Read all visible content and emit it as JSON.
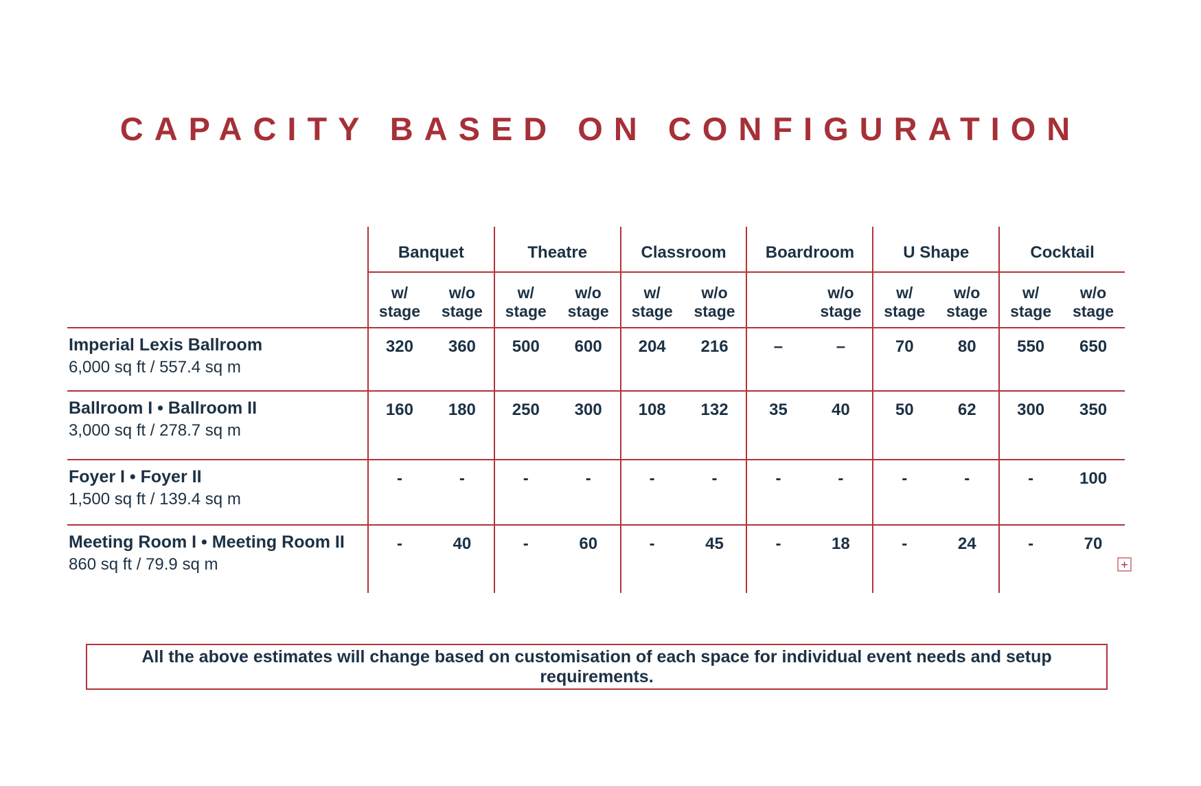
{
  "title": "CAPACITY BASED ON CONFIGURATION",
  "colors": {
    "accent_red": "#A63038",
    "line_red": "#B13438",
    "navy_text": "#1C3144"
  },
  "table": {
    "groups": [
      {
        "label": "Banquet",
        "sub": [
          "w/\nstage",
          "w/o\nstage"
        ]
      },
      {
        "label": "Theatre",
        "sub": [
          "w/\nstage",
          "w/o\nstage"
        ]
      },
      {
        "label": "Classroom",
        "sub": [
          "w/\nstage",
          "w/o\nstage"
        ]
      },
      {
        "label": "Boardroom",
        "sub": [
          "",
          "w/o\nstage"
        ]
      },
      {
        "label": "U Shape",
        "sub": [
          "w/\nstage",
          "w/o\nstage"
        ]
      },
      {
        "label": "Cocktail",
        "sub": [
          "w/\nstage",
          "w/o\nstage"
        ]
      }
    ],
    "rows": [
      {
        "name": "Imperial Lexis Ballroom",
        "size": "6,000 sq ft / 557.4 sq m",
        "values": [
          "320",
          "360",
          "500",
          "600",
          "204",
          "216",
          "–",
          "–",
          "70",
          "80",
          "550",
          "650"
        ]
      },
      {
        "name": "Ballroom I • Ballroom II",
        "size": "3,000 sq ft / 278.7 sq m",
        "values": [
          "160",
          "180",
          "250",
          "300",
          "108",
          "132",
          "35",
          "40",
          "50",
          "62",
          "300",
          "350"
        ]
      },
      {
        "name": "Foyer I • Foyer II",
        "size": "1,500 sq ft / 139.4 sq m",
        "values": [
          "-",
          "-",
          "-",
          "-",
          "-",
          "-",
          "-",
          "-",
          "-",
          "-",
          "-",
          "100"
        ]
      },
      {
        "name": "Meeting Room I • Meeting Room II",
        "size": "860 sq ft / 79.9 sq m",
        "values": [
          "-",
          "40",
          "-",
          "60",
          "-",
          "45",
          "-",
          "18",
          "-",
          "24",
          "-",
          "70"
        ]
      }
    ]
  },
  "expand_icon_glyph": "+",
  "note": "All the above estimates will change based on customisation of each space for individual event needs and setup requirements."
}
